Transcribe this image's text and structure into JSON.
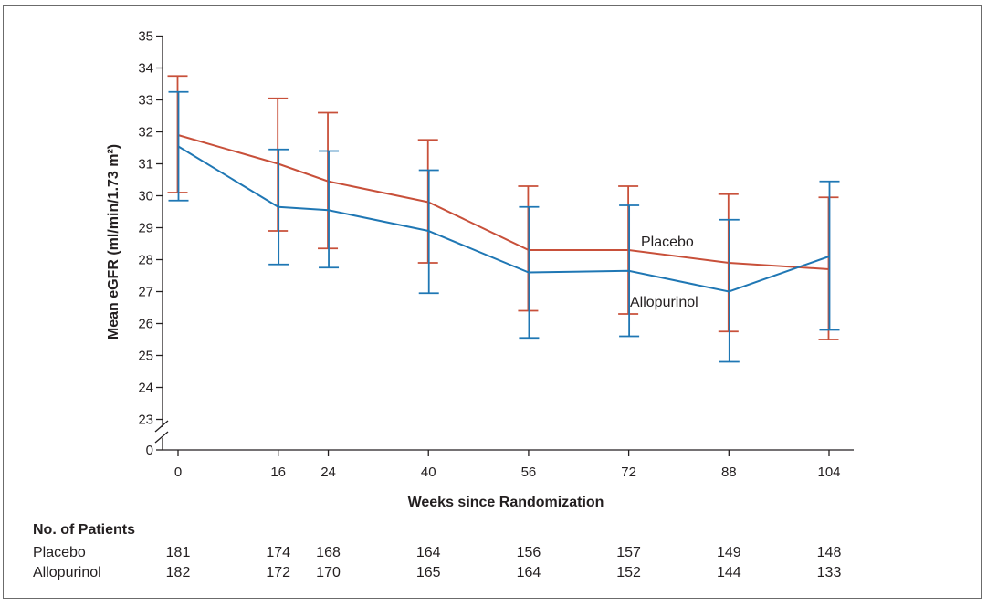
{
  "chart_data": {
    "type": "line",
    "title": "",
    "xlabel": "Weeks since Randomization",
    "ylabel": "Mean eGFR (ml/min/1.73 m²)",
    "x": [
      0,
      16,
      24,
      40,
      56,
      72,
      88,
      104
    ],
    "xticks": [
      "0",
      "16",
      "24",
      "40",
      "56",
      "72",
      "88",
      "104"
    ],
    "yticks": [
      "0",
      "23",
      "24",
      "25",
      "26",
      "27",
      "28",
      "29",
      "30",
      "31",
      "32",
      "33",
      "34",
      "35"
    ],
    "ylim": [
      23,
      35
    ],
    "y_axis_break": true,
    "grid": false,
    "series": [
      {
        "name": "Placebo",
        "color": "#c8503a",
        "values": [
          31.9,
          31.0,
          30.45,
          29.8,
          28.3,
          28.3,
          27.9,
          27.7
        ],
        "upper": [
          33.75,
          33.05,
          32.6,
          31.75,
          30.3,
          30.3,
          30.05,
          29.95
        ],
        "lower": [
          30.1,
          28.9,
          28.35,
          27.9,
          26.4,
          26.3,
          25.75,
          25.5
        ]
      },
      {
        "name": "Allopurinol",
        "color": "#1f77b4",
        "values": [
          31.55,
          29.65,
          29.55,
          28.9,
          27.6,
          27.65,
          27.0,
          28.1
        ],
        "upper": [
          33.25,
          31.45,
          31.4,
          30.8,
          29.65,
          29.7,
          29.25,
          30.45
        ],
        "lower": [
          29.85,
          27.85,
          27.75,
          26.95,
          25.55,
          25.6,
          24.8,
          25.8
        ]
      }
    ]
  },
  "patients": {
    "title": "No. of Patients",
    "rows": [
      {
        "label": "Placebo",
        "counts": [
          "181",
          "174",
          "168",
          "164",
          "156",
          "157",
          "149",
          "148"
        ]
      },
      {
        "label": "Allopurinol",
        "counts": [
          "182",
          "172",
          "170",
          "165",
          "164",
          "152",
          "144",
          "133"
        ]
      }
    ]
  }
}
